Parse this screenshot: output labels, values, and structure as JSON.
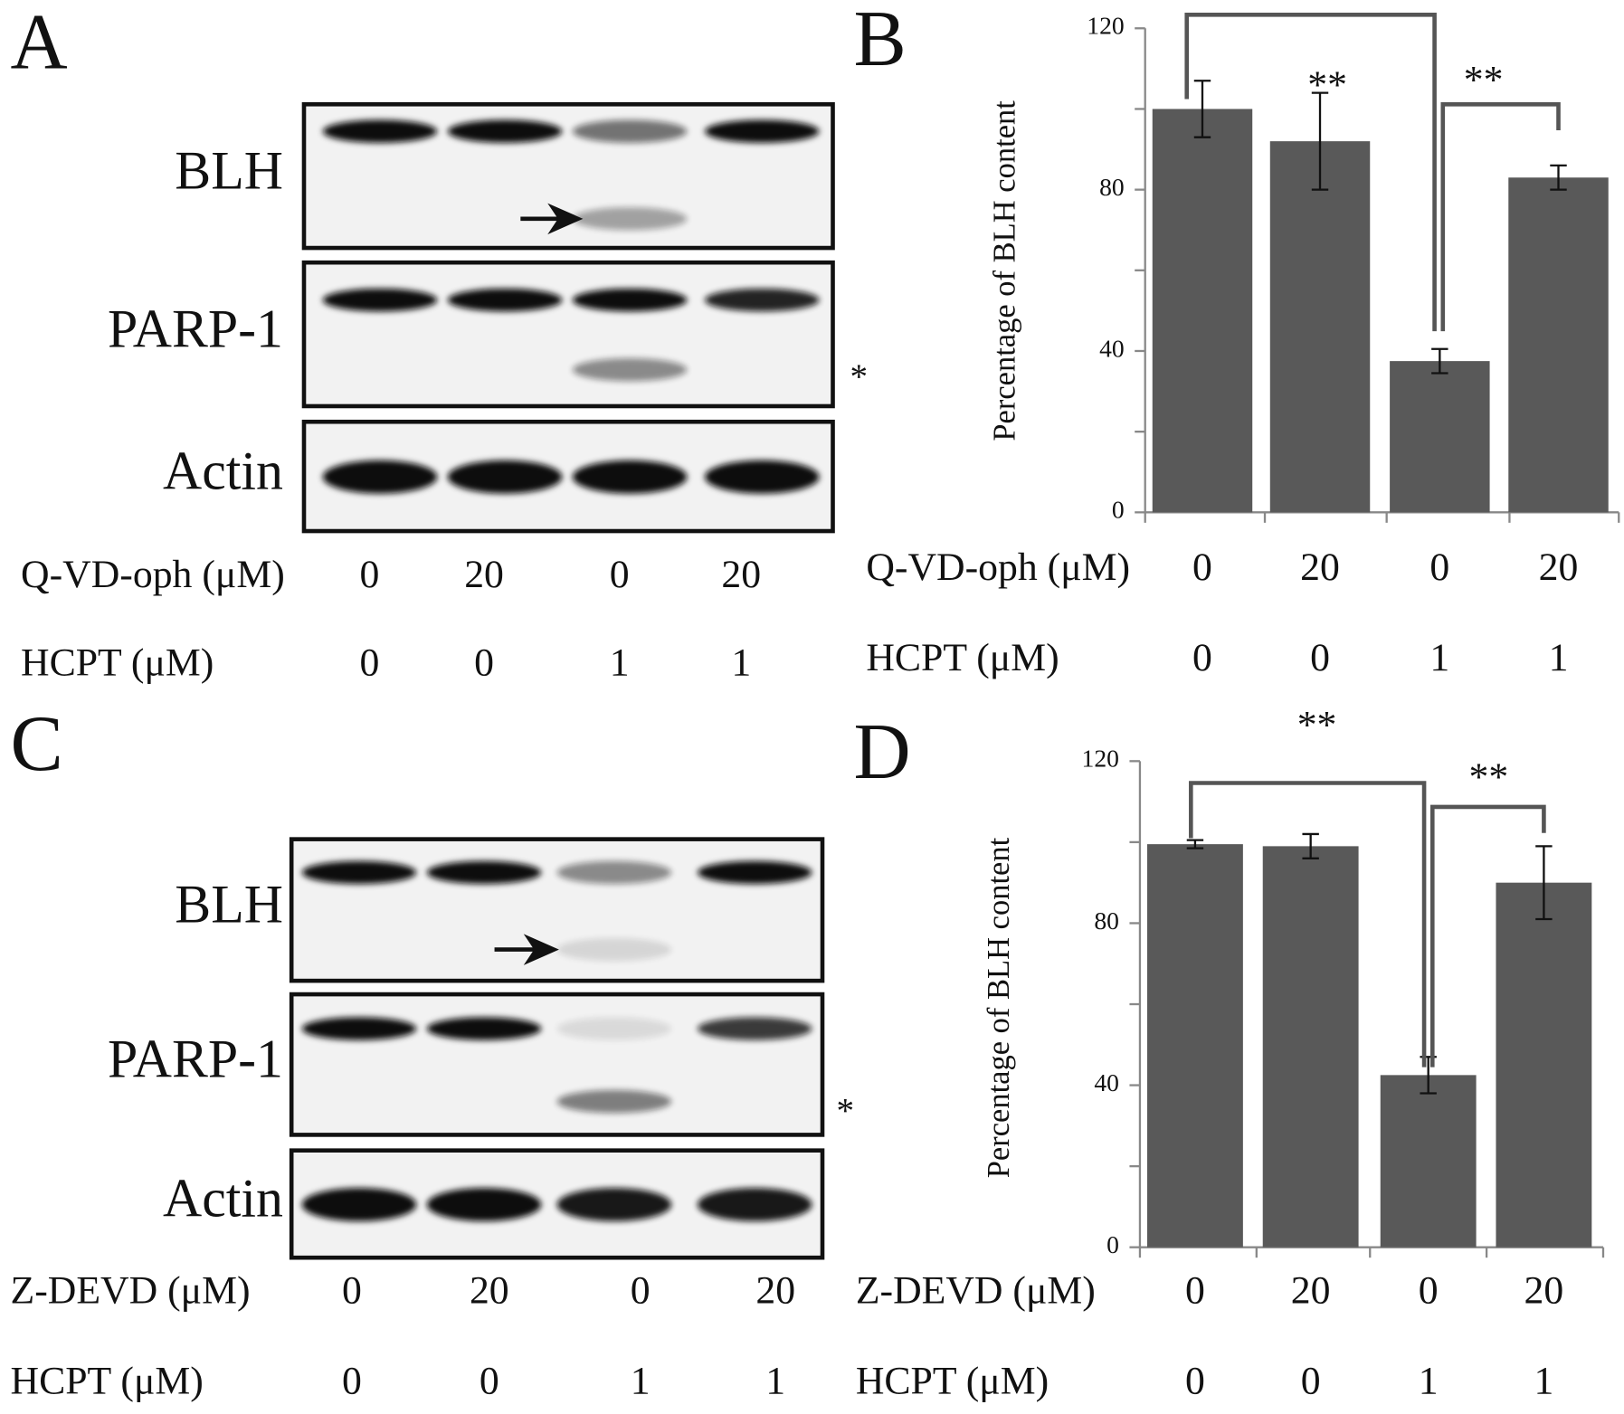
{
  "panels": {
    "A": {
      "label": "A",
      "rows": [
        "BLH",
        "PARP-1",
        "Actin"
      ],
      "marker": "*",
      "treatments": [
        {
          "name": "Q-VD-oph (μM)",
          "values": [
            0,
            20,
            0,
            20
          ]
        },
        {
          "name": "HCPT (μM)",
          "values": [
            0,
            0,
            1,
            1
          ]
        }
      ]
    },
    "C": {
      "label": "C",
      "rows": [
        "BLH",
        "PARP-1",
        "Actin"
      ],
      "marker": "*",
      "treatments": [
        {
          "name": "Z-DEVD (μM)",
          "values": [
            0,
            20,
            0,
            20
          ]
        },
        {
          "name": "HCPT (μM)",
          "values": [
            0,
            0,
            1,
            1
          ]
        }
      ]
    }
  },
  "chart_data": [
    {
      "type": "bar",
      "panel_label": "B",
      "y_label": "Percentage of BLH content",
      "color": "#595959",
      "values": [
        100,
        92,
        37.5,
        83
      ],
      "errors": [
        7,
        12,
        3,
        3
      ],
      "ylim": [
        0,
        120
      ],
      "yticks": [
        0,
        40,
        80,
        120
      ],
      "annotations": [
        "**",
        "**"
      ],
      "treatments": [
        {
          "name": "Q-VD-oph (μM)",
          "values": [
            0,
            20,
            0,
            20
          ]
        },
        {
          "name": "HCPT (μM)",
          "values": [
            0,
            0,
            1,
            1
          ]
        }
      ]
    },
    {
      "type": "bar",
      "panel_label": "D",
      "y_label": "Percentage of BLH content",
      "color": "#595959",
      "values": [
        99.5,
        99,
        42.5,
        90
      ],
      "errors": [
        1,
        3,
        4.5,
        9
      ],
      "ylim": [
        0,
        120
      ],
      "yticks": [
        0,
        40,
        80,
        120
      ],
      "annotations": [
        "**",
        "**"
      ],
      "treatments": [
        {
          "name": "Z-DEVD (μM)",
          "values": [
            0,
            20,
            0,
            20
          ]
        },
        {
          "name": "HCPT (μM)",
          "values": [
            0,
            0,
            1,
            1
          ]
        }
      ]
    }
  ]
}
